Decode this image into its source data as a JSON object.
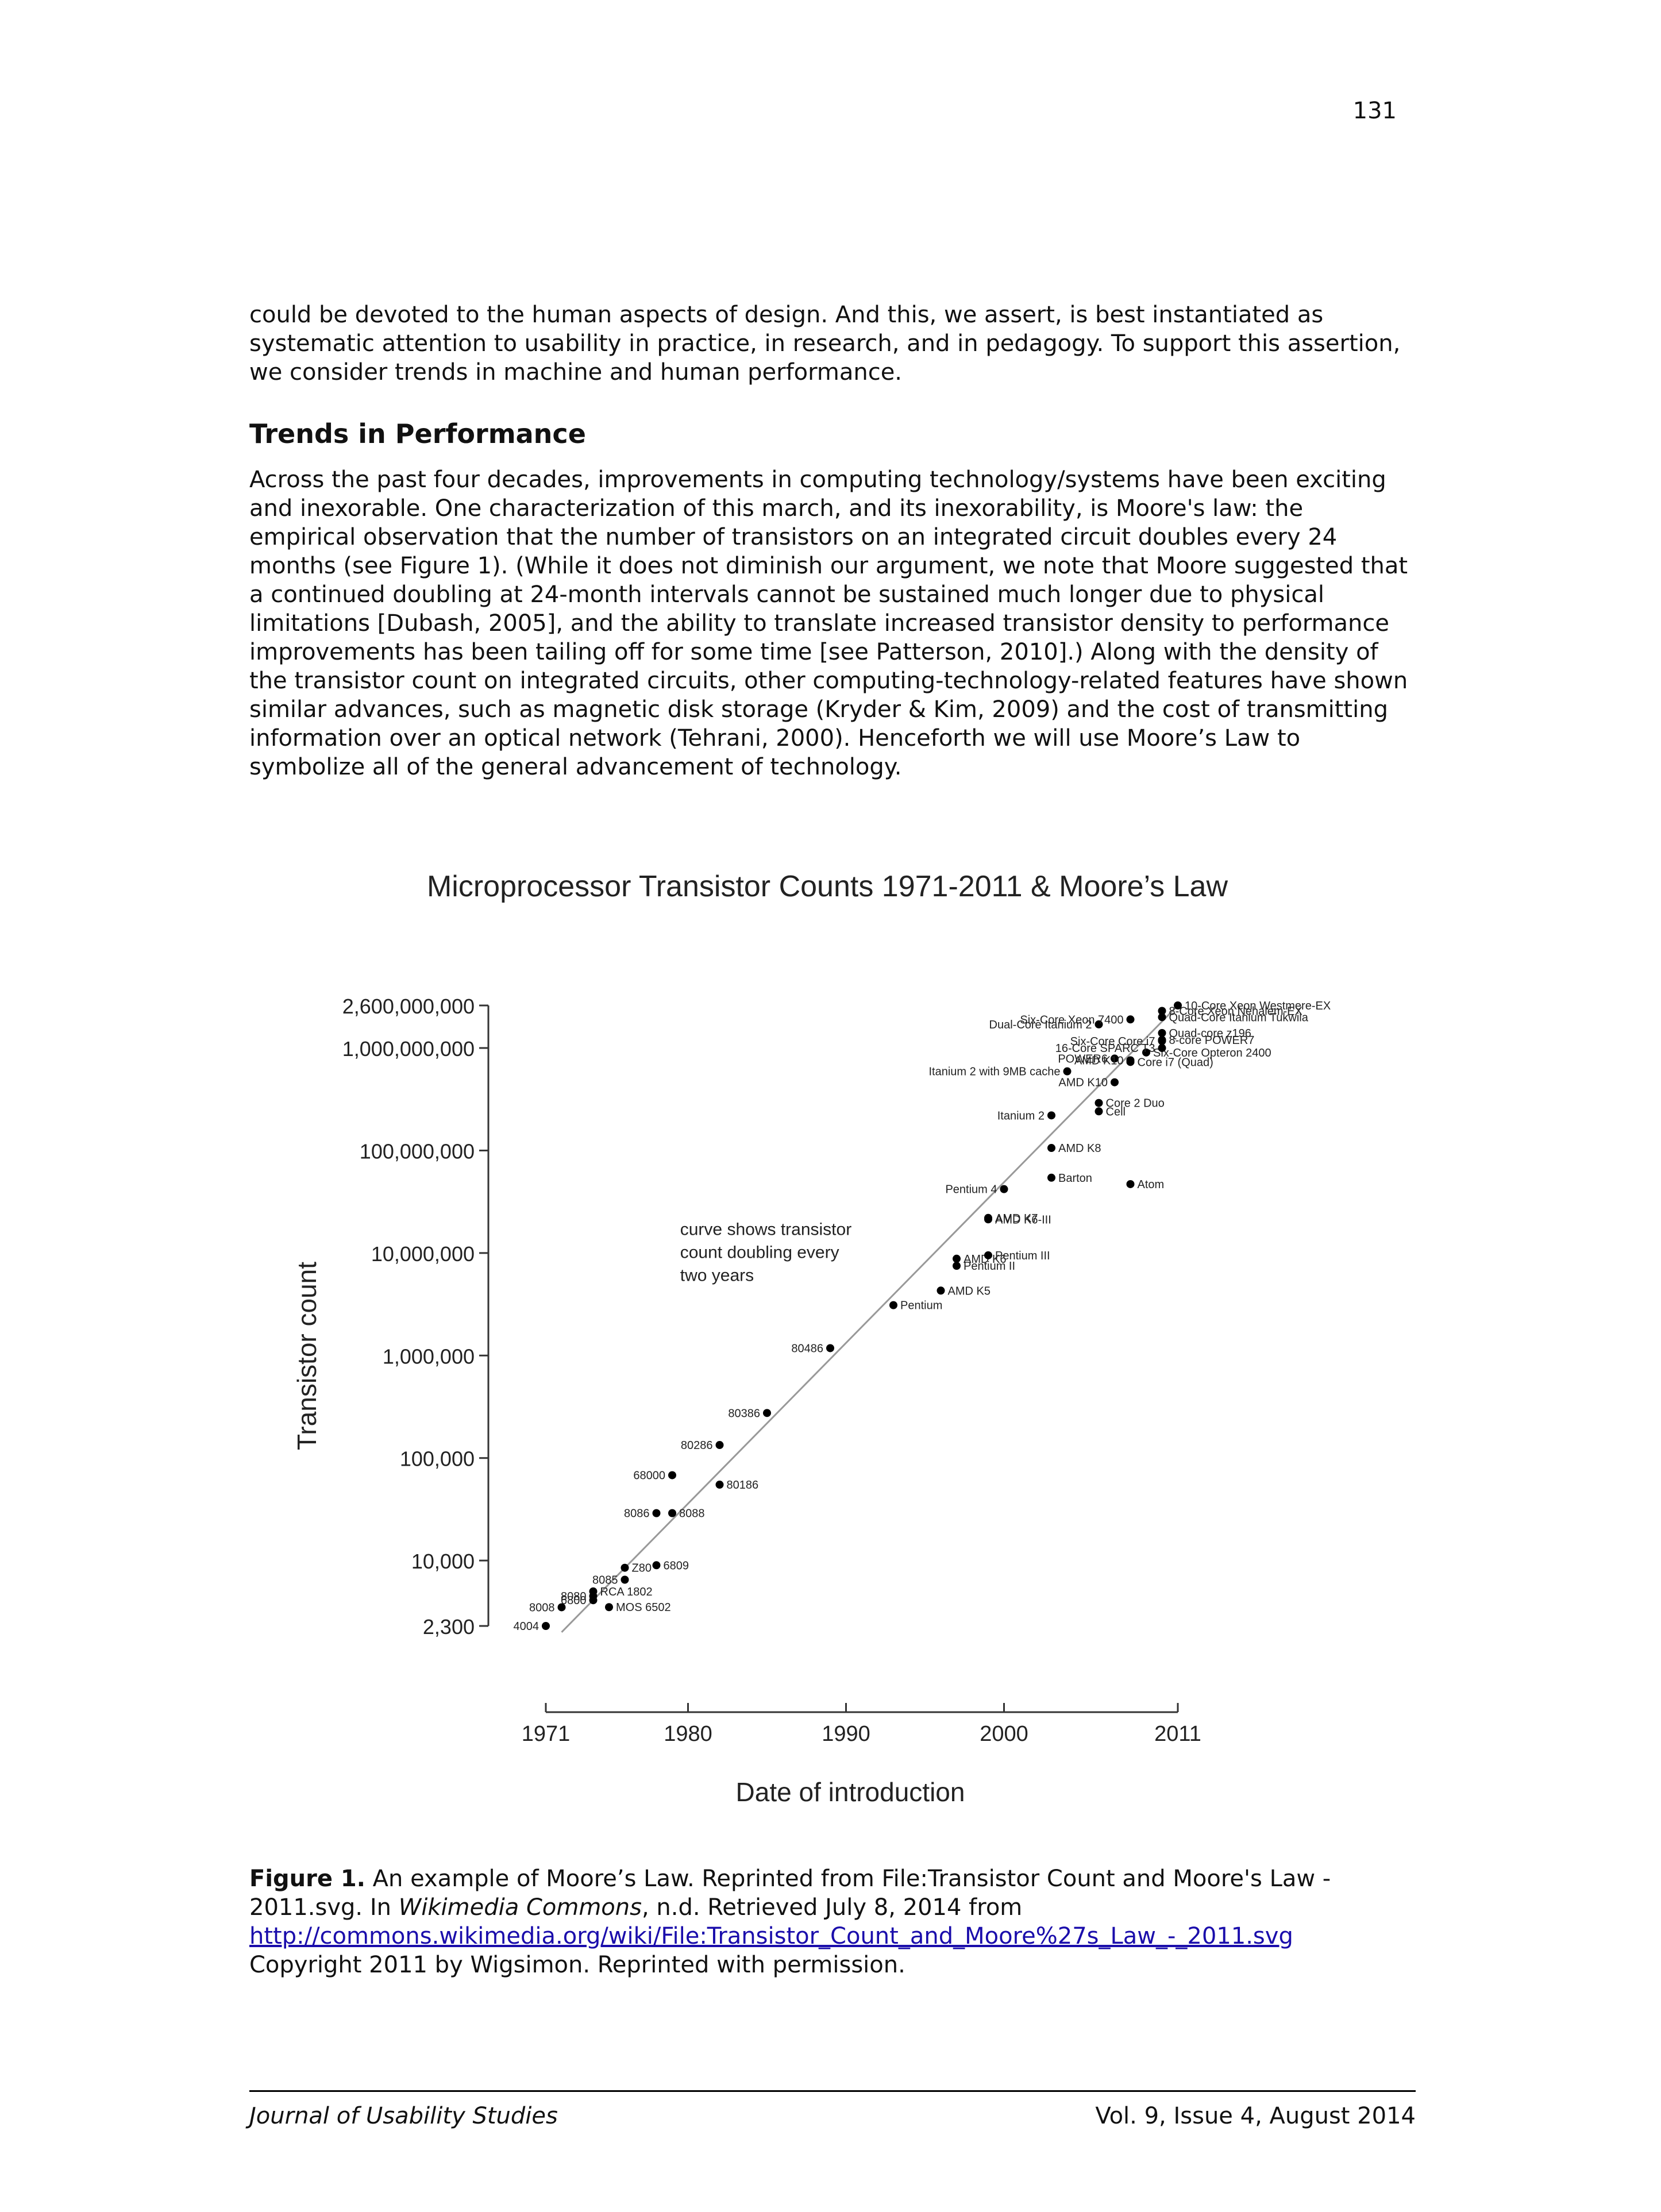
{
  "page_number": "131",
  "paragraph_1": "could be devoted to the human aspects of design. And this, we assert, is best instantiated as systematic attention to usability in practice, in research, and in pedagogy. To support this assertion, we consider trends in machine and human performance.",
  "section_heading": "Trends in Performance",
  "paragraph_2": "Across the past four decades, improvements in computing technology/systems have been exciting and inexorable. One characterization of this march, and its inexorability, is Moore's law: the empirical observation that the number of transistors on an integrated circuit doubles every 24 months (see Figure 1). (While it does not diminish our argument, we note that Moore suggested that a continued doubling at 24-month intervals cannot be sustained much longer due to physical limitations [Dubash, 2005], and the ability to translate increased transistor density to performance improvements has been tailing off for some time [see Patterson, 2010].) Along with the density of the transistor count on integrated circuits, other computing-technology-related features have shown similar advances, such as magnetic disk storage (Kryder & Kim, 2009) and the cost of transmitting information over an optical network (Tehrani, 2000). Henceforth we will use Moore’s Law to symbolize all of the general advancement of technology.",
  "chart_data": {
    "type": "scatter",
    "title": "Microprocessor Transistor Counts 1971-2011 & Moore’s Law",
    "xlabel": "Date of introduction",
    "ylabel": "Transistor count",
    "y_scale": "log",
    "xlim": [
      1971,
      2011
    ],
    "ylim": [
      2300,
      2600000000
    ],
    "x_ticks": [
      "1971",
      "1980",
      "1990",
      "2000",
      "2011"
    ],
    "y_ticks": [
      "2,600,000,000",
      "1,000,000,000",
      "100,000,000",
      "10,000,000",
      "1,000,000",
      "100,000",
      "10,000",
      "2,300"
    ],
    "annotation": [
      "curve shows transistor",
      "count doubling every",
      "two years"
    ],
    "trend_line": {
      "x": [
        1972,
        2011
      ],
      "y": [
        2000,
        2600000000
      ]
    },
    "points": [
      {
        "label": "4004",
        "x": 1971,
        "y": 2300
      },
      {
        "label": "8008",
        "x": 1972,
        "y": 3500
      },
      {
        "label": "8080",
        "x": 1974,
        "y": 4500
      },
      {
        "label": "RCA 1802",
        "x": 1974,
        "y": 5000
      },
      {
        "label": "MOS 6502",
        "x": 1975,
        "y": 3510
      },
      {
        "label": "6800",
        "x": 1974,
        "y": 4100
      },
      {
        "label": "8085",
        "x": 1976,
        "y": 6500
      },
      {
        "label": "Z80",
        "x": 1976,
        "y": 8500
      },
      {
        "label": "6809",
        "x": 1978,
        "y": 9000
      },
      {
        "label": "8086",
        "x": 1978,
        "y": 29000
      },
      {
        "label": "8088",
        "x": 1979,
        "y": 29000
      },
      {
        "label": "68000",
        "x": 1979,
        "y": 68000
      },
      {
        "label": "80186",
        "x": 1982,
        "y": 55000
      },
      {
        "label": "80286",
        "x": 1982,
        "y": 134000
      },
      {
        "label": "80386",
        "x": 1985,
        "y": 275000
      },
      {
        "label": "80486",
        "x": 1989,
        "y": 1180000
      },
      {
        "label": "Pentium",
        "x": 1993,
        "y": 3100000
      },
      {
        "label": "AMD K5",
        "x": 1996,
        "y": 4300000
      },
      {
        "label": "Pentium II",
        "x": 1997,
        "y": 7500000
      },
      {
        "label": "AMD K6",
        "x": 1997,
        "y": 8800000
      },
      {
        "label": "Pentium III",
        "x": 1999,
        "y": 9500000
      },
      {
        "label": "AMD K6-III",
        "x": 1999,
        "y": 21300000
      },
      {
        "label": "AMD K7",
        "x": 1999,
        "y": 22000000
      },
      {
        "label": "Pentium 4",
        "x": 2000,
        "y": 42000000
      },
      {
        "label": "Barton",
        "x": 2003,
        "y": 54300000
      },
      {
        "label": "Atom",
        "x": 2008,
        "y": 47000000
      },
      {
        "label": "AMD K8",
        "x": 2003,
        "y": 105900000
      },
      {
        "label": "Itanium 2",
        "x": 2003,
        "y": 220000000
      },
      {
        "label": "Cell",
        "x": 2006,
        "y": 241000000
      },
      {
        "label": "Core 2 Duo",
        "x": 2006,
        "y": 291000000
      },
      {
        "label": "Itanium 2 with 9MB cache",
        "x": 2004,
        "y": 592000000
      },
      {
        "label": "AMD K10",
        "x": 2007,
        "y": 463000000
      },
      {
        "label": "Core i7 (Quad)",
        "x": 2008,
        "y": 731000000
      },
      {
        "label": "POWER6",
        "x": 2007,
        "y": 789000000
      },
      {
        "label": "AMD K10",
        "x": 2008,
        "y": 758000000
      },
      {
        "label": "Six-Core Opteron 2400",
        "x": 2009,
        "y": 904000000
      },
      {
        "label": "Dual-Core Itanium 2",
        "x": 2006,
        "y": 1700000000
      },
      {
        "label": "Six-Core Xeon 7400",
        "x": 2008,
        "y": 1900000000
      },
      {
        "label": "Six-Core Core i7",
        "x": 2010,
        "y": 1170000000
      },
      {
        "label": "8-Core Xeon Nehalem-EX",
        "x": 2010,
        "y": 2300000000
      },
      {
        "label": "Quad-Core Itanium Tukwila",
        "x": 2010,
        "y": 2000000000
      },
      {
        "label": "Quad-core z196",
        "x": 2010,
        "y": 1400000000
      },
      {
        "label": "8-core POWER7",
        "x": 2010,
        "y": 1200000000
      },
      {
        "label": "16-Core SPARC T3",
        "x": 2010,
        "y": 1000000000
      },
      {
        "label": "10-Core Xeon Westmere-EX",
        "x": 2011,
        "y": 2600000000
      }
    ]
  },
  "caption": {
    "label": "Figure 1.",
    "text_1": " An example of Moore’s Law. Reprinted from File:Transistor Count and Moore's Law - 2011.svg. In ",
    "source_italic": "Wikimedia Commons",
    "text_2": ", n.d. Retrieved July 8, 2014 from ",
    "link": "http://commons.wikimedia.org/wiki/File:Transistor_Count_and_Moore%27s_Law_-_2011.svg",
    "text_3": " Copyright 2011 by Wigsimon. Reprinted with permission."
  },
  "footer": {
    "journal": "Journal of Usability Studies",
    "issue": "Vol. 9, Issue 4, August 2014"
  }
}
